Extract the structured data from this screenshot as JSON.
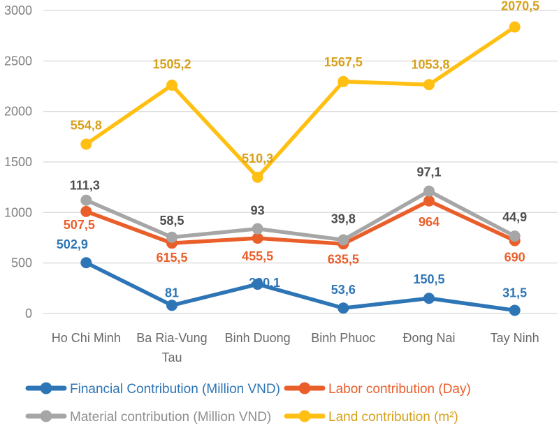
{
  "chart_data": {
    "type": "line",
    "variant": "stacked-line-with-markers",
    "title": "",
    "xlabel": "",
    "ylabel": "",
    "grid": true,
    "legend_position": "bottom",
    "categories": [
      "Ho Chi Minh",
      "Ba Ria-Vung Tau",
      "Binh Duong",
      "Binh Phuoc",
      "Đong Nai",
      "Tay Ninh"
    ],
    "y_axis": {
      "min": 0,
      "max": 3000,
      "step": 500,
      "tick_labels": [
        "0",
        "500",
        "1000",
        "1500",
        "2000",
        "2500",
        "3000"
      ]
    },
    "series": [
      {
        "name": "Financial Contribution (Million VND)",
        "color": "#2E75B6",
        "label_color": "#2E75B6",
        "legend_text_color": "#2E75B6",
        "values": [
          502.9,
          81,
          290.1,
          53.6,
          150.5,
          31.5
        ],
        "point_labels": [
          "502,9",
          "81",
          "290,1",
          "53,6",
          "150,5",
          "31,5"
        ]
      },
      {
        "name": "Labor contribution (Day)",
        "color": "#EA5E2A",
        "label_color": "#EA5E2A",
        "legend_text_color": "#EA5E2A",
        "values": [
          507.5,
          615.5,
          455.5,
          635.5,
          964,
          690
        ],
        "point_labels": [
          "507,5",
          "615,5",
          "455,5",
          "635,5",
          "964",
          "690"
        ]
      },
      {
        "name": "Material contribution (Million VND)",
        "color": "#A6A6A6",
        "label_color": "#4D4D4D",
        "legend_text_color": "#8F8F8F",
        "values": [
          111.3,
          58.5,
          93,
          39.8,
          97.1,
          44.9
        ],
        "point_labels": [
          "111,3",
          "58,5",
          "93",
          "39,8",
          "97,1",
          "44,9"
        ]
      },
      {
        "name": "Land contribution (m²)",
        "color": "#FFC013",
        "label_color": "#D7A019",
        "legend_text_color": "#D7A019",
        "values": [
          554.8,
          1505.2,
          510.3,
          1567.5,
          1053.8,
          2070.5
        ],
        "point_labels": [
          "554,8",
          "1505,2",
          "510,3",
          "1567,5",
          "1053,8",
          "2070,5"
        ]
      }
    ],
    "style": {
      "gridline_color": "#D6D6D6",
      "y_tick_color": "#7F7F7F",
      "x_label_color": "#696969",
      "background": "#FFFFFF"
    }
  }
}
